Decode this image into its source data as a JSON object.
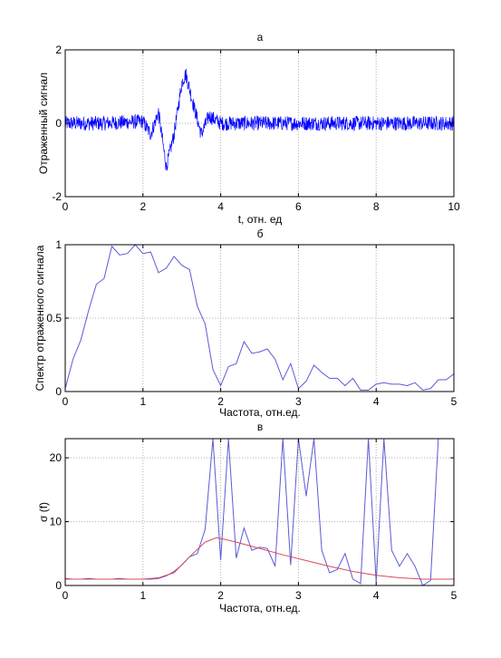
{
  "chart_data": [
    {
      "type": "line",
      "title": "а",
      "xlabel": "t, отн. ед",
      "ylabel": "Отраженный сигнал",
      "xlim": [
        0,
        10
      ],
      "ylim": [
        -2,
        2
      ],
      "xticks": [
        0,
        2,
        4,
        6,
        8,
        10
      ],
      "yticks": [
        -2,
        0,
        2
      ],
      "grid": true,
      "series": [
        {
          "color": "#0000ff",
          "x": [
            0,
            1,
            2,
            2.2,
            2.4,
            2.6,
            2.8,
            3.0,
            3.1,
            3.3,
            3.5,
            3.7,
            4,
            5,
            6,
            7,
            8,
            9,
            10
          ],
          "y": [
            0,
            0,
            0.05,
            -0.3,
            0.3,
            -1.2,
            -0.3,
            1.1,
            1.35,
            0.5,
            -0.3,
            0.2,
            0,
            0,
            0,
            0,
            0,
            0,
            0
          ],
          "noise_amplitude": 0.2
        }
      ]
    },
    {
      "type": "line",
      "title": "б",
      "xlabel": "Частота, отн.ед.",
      "ylabel": "Спектр отраженного сигнала",
      "xlim": [
        0,
        5
      ],
      "ylim": [
        0,
        1
      ],
      "xticks": [
        0,
        1,
        2,
        3,
        4,
        5
      ],
      "yticks": [
        0,
        0.5,
        1
      ],
      "grid": true,
      "series": [
        {
          "color": "#5b5bd6",
          "x": [
            0,
            0.1,
            0.2,
            0.3,
            0.4,
            0.5,
            0.6,
            0.7,
            0.8,
            0.9,
            1.0,
            1.1,
            1.2,
            1.3,
            1.4,
            1.5,
            1.6,
            1.7,
            1.8,
            1.9,
            2.0,
            2.1,
            2.2,
            2.3,
            2.4,
            2.5,
            2.6,
            2.7,
            2.8,
            2.9,
            3.0,
            3.1,
            3.2,
            3.3,
            3.4,
            3.5,
            3.6,
            3.7,
            3.8,
            3.9,
            4.0,
            4.1,
            4.2,
            4.3,
            4.4,
            4.5,
            4.6,
            4.7,
            4.8,
            4.9,
            5.0
          ],
          "y": [
            0.02,
            0.22,
            0.35,
            0.55,
            0.73,
            0.77,
            0.99,
            0.93,
            0.94,
            1.0,
            0.94,
            0.95,
            0.81,
            0.84,
            0.92,
            0.86,
            0.83,
            0.58,
            0.46,
            0.15,
            0.04,
            0.17,
            0.19,
            0.34,
            0.26,
            0.27,
            0.29,
            0.22,
            0.08,
            0.19,
            0.02,
            0.07,
            0.18,
            0.13,
            0.09,
            0.09,
            0.04,
            0.09,
            0.01,
            0.01,
            0.05,
            0.06,
            0.05,
            0.05,
            0.04,
            0.06,
            0.01,
            0.02,
            0.08,
            0.08,
            0.12
          ]
        }
      ]
    },
    {
      "type": "line",
      "title": "в",
      "xlabel": "Частота, отн.ед.",
      "ylabel": "σ (f)",
      "xlim": [
        0,
        5
      ],
      "ylim": [
        0,
        23
      ],
      "xticks": [
        0,
        1,
        2,
        3,
        4,
        5
      ],
      "yticks": [
        0,
        10,
        20
      ],
      "grid": true,
      "series": [
        {
          "color": "#5b5bd6",
          "x": [
            0,
            0.1,
            0.2,
            0.3,
            0.4,
            0.5,
            0.6,
            0.7,
            0.8,
            0.9,
            1.0,
            1.1,
            1.2,
            1.3,
            1.4,
            1.5,
            1.6,
            1.7,
            1.8,
            1.9,
            2.0,
            2.1,
            2.2,
            2.3,
            2.4,
            2.5,
            2.6,
            2.7,
            2.8,
            2.9,
            3.0,
            3.1,
            3.2,
            3.3,
            3.4,
            3.5,
            3.6,
            3.7,
            3.8,
            3.9,
            4.0,
            4.1,
            4.2,
            4.3,
            4.4,
            4.5,
            4.6,
            4.7,
            4.8,
            4.9,
            5.0
          ],
          "y": [
            1.1,
            1.0,
            1.0,
            1.1,
            1.0,
            1.0,
            1.0,
            1.1,
            1.0,
            1.0,
            1.0,
            1.0,
            1.1,
            1.5,
            2.2,
            3.2,
            4.5,
            5.0,
            8.8,
            23,
            4.0,
            23,
            4.3,
            9.0,
            5.5,
            6.0,
            5.8,
            3.0,
            23,
            3.2,
            23,
            14.0,
            23,
            5.5,
            2.0,
            2.5,
            5.0,
            1.0,
            0.3,
            23,
            0.5,
            23,
            5.5,
            3.0,
            5.0,
            3.0,
            0.0,
            0.8,
            23,
            23,
            23
          ]
        },
        {
          "color": "#d9485f",
          "x": [
            0,
            0.2,
            0.4,
            0.6,
            0.8,
            1.0,
            1.2,
            1.4,
            1.6,
            1.8,
            1.95,
            2.2,
            2.5,
            2.8,
            3.1,
            3.4,
            3.7,
            4.0,
            4.3,
            4.6,
            4.8,
            5.0
          ],
          "y": [
            1.0,
            1.0,
            1.0,
            1.0,
            1.0,
            1.0,
            1.2,
            2.0,
            4.5,
            6.8,
            7.5,
            6.8,
            5.8,
            4.8,
            3.9,
            3.0,
            2.2,
            1.6,
            1.2,
            1.0,
            1.0,
            1.0
          ]
        }
      ]
    }
  ]
}
